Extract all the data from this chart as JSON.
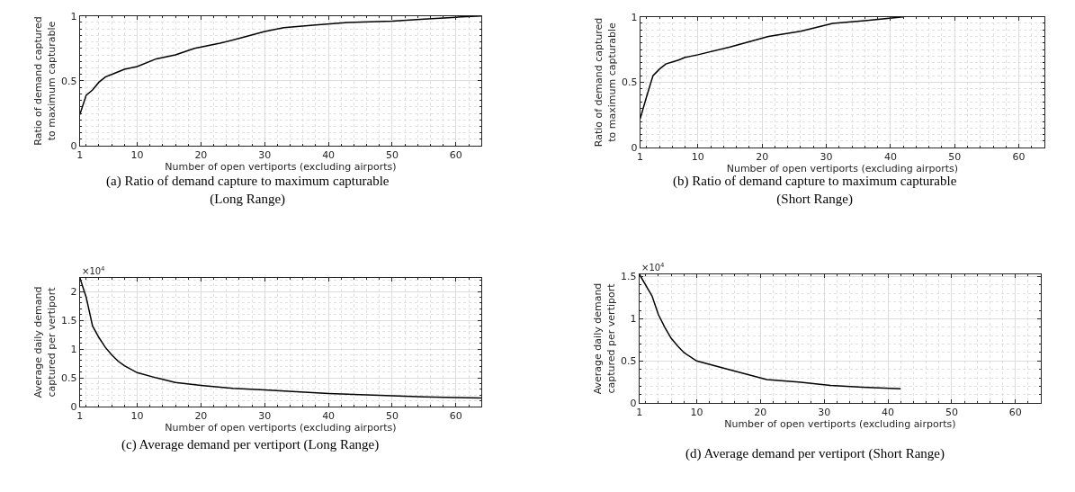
{
  "chart_data": [
    {
      "type": "line",
      "title": "(a) Ratio of demand capture to maximum capturable\n(Long Range)",
      "xlabel": "Number of open vertiports (excluding airports)",
      "ylabel": "Ratio of demand captured\nto maximum capturable",
      "xlim": [
        1,
        64
      ],
      "xticks": [
        1,
        10,
        20,
        30,
        40,
        50,
        60
      ],
      "ylim": [
        0,
        1
      ],
      "yticks": [
        0,
        0.5,
        1
      ],
      "grid": true,
      "x": [
        1,
        2,
        3,
        4,
        5,
        6,
        8,
        10,
        13,
        16,
        19,
        23,
        27,
        30,
        33,
        38,
        43,
        50,
        55,
        60,
        64
      ],
      "series": [
        {
          "color": "#000000",
          "values": [
            0.24,
            0.39,
            0.43,
            0.49,
            0.53,
            0.55,
            0.59,
            0.61,
            0.67,
            0.7,
            0.75,
            0.79,
            0.84,
            0.88,
            0.91,
            0.93,
            0.95,
            0.96,
            0.975,
            0.99,
            1.0
          ]
        }
      ]
    },
    {
      "type": "line",
      "title": "(b) Ratio of demand capture to maximum capturable\n(Short Range)",
      "xlabel": "Number of open vertiports (excluding airports)",
      "ylabel": "Ratio of demand captured\nto maximum capturable",
      "xlim": [
        1,
        64
      ],
      "xticks": [
        1,
        10,
        20,
        30,
        40,
        50,
        60
      ],
      "ylim": [
        0,
        1
      ],
      "yticks": [
        0,
        0.5,
        1
      ],
      "grid": true,
      "x": [
        1,
        2,
        3,
        4,
        5,
        7,
        8,
        10,
        15,
        21,
        26,
        31,
        36,
        42
      ],
      "series": [
        {
          "color": "#000000",
          "values": [
            0.22,
            0.39,
            0.55,
            0.6,
            0.64,
            0.67,
            0.69,
            0.71,
            0.77,
            0.85,
            0.89,
            0.95,
            0.97,
            1.0
          ]
        }
      ]
    },
    {
      "type": "line",
      "title": "(c) Average demand per vertiport (Long Range)",
      "xlabel": "Number of open vertiports (excluding airports)",
      "ylabel": "Average daily demand\ncaptured per vertiport",
      "annotations": [
        "×10$^{4}$"
      ],
      "xlim": [
        1,
        64
      ],
      "xticks": [
        1,
        10,
        20,
        30,
        40,
        50,
        60
      ],
      "ylim": [
        0,
        2.24
      ],
      "yticks": [
        0,
        0.5,
        1,
        1.5,
        2
      ],
      "grid": true,
      "x": [
        1,
        2,
        3,
        4,
        5,
        6,
        7,
        8,
        10,
        13,
        16,
        20,
        25,
        30,
        35,
        40,
        45,
        50,
        55,
        60,
        64
      ],
      "series": [
        {
          "color": "#000000",
          "values": [
            2.24,
            1.9,
            1.4,
            1.2,
            1.03,
            0.9,
            0.79,
            0.71,
            0.59,
            0.5,
            0.42,
            0.37,
            0.32,
            0.29,
            0.26,
            0.23,
            0.21,
            0.19,
            0.17,
            0.16,
            0.15
          ]
        }
      ]
    },
    {
      "type": "line",
      "title": "(d) Average demand per vertiport (Short Range)",
      "xlabel": "Number of open vertiports (excluding airports)",
      "ylabel": "Average daily demand\ncaptured per vertiport",
      "annotations": [
        "×10$^{4}$"
      ],
      "xlim": [
        1,
        64
      ],
      "xticks": [
        1,
        10,
        20,
        30,
        40,
        50,
        60
      ],
      "ylim": [
        0,
        1.53
      ],
      "yticks": [
        0,
        0.5,
        1,
        1.5
      ],
      "grid": true,
      "x": [
        1,
        2,
        3,
        4,
        5,
        6,
        7,
        8,
        10,
        15,
        21,
        26,
        31,
        36,
        42
      ],
      "series": [
        {
          "color": "#000000",
          "values": [
            1.53,
            1.4,
            1.27,
            1.05,
            0.9,
            0.77,
            0.68,
            0.6,
            0.5,
            0.4,
            0.28,
            0.25,
            0.21,
            0.19,
            0.17
          ]
        }
      ]
    }
  ]
}
